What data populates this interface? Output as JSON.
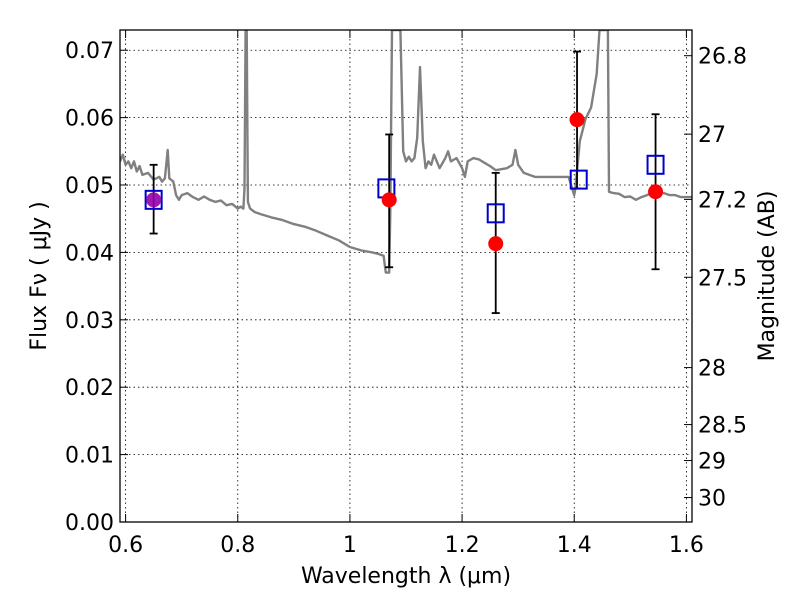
{
  "chart_data": {
    "type": "scatter",
    "xlabel": "Wavelength  λ (μm)",
    "ylabel_left": "Flux  Fν  ( μJy )",
    "ylabel_right": "Magnitude (AB)",
    "xlim": [
      0.59,
      1.61
    ],
    "ylim": [
      0.0,
      0.073
    ],
    "grid": true,
    "x_ticks": [
      {
        "value": 0.6,
        "label": "0.6"
      },
      {
        "value": 0.8,
        "label": "0.8"
      },
      {
        "value": 1.0,
        "label": "1"
      },
      {
        "value": 1.2,
        "label": "1.2"
      },
      {
        "value": 1.4,
        "label": "1.4"
      },
      {
        "value": 1.6,
        "label": "1.6"
      }
    ],
    "y_ticks": [
      {
        "value": 0.0,
        "label": "0.00"
      },
      {
        "value": 0.01,
        "label": "0.01"
      },
      {
        "value": 0.02,
        "label": "0.02"
      },
      {
        "value": 0.03,
        "label": "0.03"
      },
      {
        "value": 0.04,
        "label": "0.04"
      },
      {
        "value": 0.05,
        "label": "0.05"
      },
      {
        "value": 0.06,
        "label": "0.06"
      },
      {
        "value": 0.07,
        "label": "0.07"
      }
    ],
    "right_ticks": [
      {
        "mag": 26.8,
        "label": "26.8"
      },
      {
        "mag": 27.0,
        "label": "27"
      },
      {
        "mag": 27.2,
        "label": "27.2"
      },
      {
        "mag": 27.5,
        "label": "27.5"
      },
      {
        "mag": 28.0,
        "label": "28"
      },
      {
        "mag": 28.5,
        "label": "28.5"
      },
      {
        "mag": 29.0,
        "label": "29"
      },
      {
        "mag": 30.0,
        "label": "30"
      }
    ],
    "series": [
      {
        "kind": "line",
        "color": "#808080",
        "points": [
          [
            0.59,
            0.0535
          ],
          [
            0.595,
            0.0545
          ],
          [
            0.6,
            0.053
          ],
          [
            0.605,
            0.0535
          ],
          [
            0.61,
            0.0525
          ],
          [
            0.615,
            0.0535
          ],
          [
            0.62,
            0.052
          ],
          [
            0.625,
            0.0528
          ],
          [
            0.63,
            0.0515
          ],
          [
            0.64,
            0.0518
          ],
          [
            0.65,
            0.0508
          ],
          [
            0.66,
            0.0512
          ],
          [
            0.665,
            0.0505
          ],
          [
            0.67,
            0.051
          ],
          [
            0.675,
            0.0552
          ],
          [
            0.678,
            0.051
          ],
          [
            0.685,
            0.0505
          ],
          [
            0.69,
            0.0485
          ],
          [
            0.695,
            0.0478
          ],
          [
            0.7,
            0.0485
          ],
          [
            0.71,
            0.0488
          ],
          [
            0.72,
            0.0482
          ],
          [
            0.73,
            0.0478
          ],
          [
            0.74,
            0.0483
          ],
          [
            0.75,
            0.0478
          ],
          [
            0.76,
            0.0475
          ],
          [
            0.77,
            0.0477
          ],
          [
            0.78,
            0.047
          ],
          [
            0.79,
            0.0472
          ],
          [
            0.8,
            0.0465
          ],
          [
            0.805,
            0.0468
          ],
          [
            0.81,
            0.0465
          ],
          [
            0.812,
            0.0495
          ],
          [
            0.814,
            0.073
          ],
          [
            0.816,
            0.073
          ],
          [
            0.818,
            0.0475
          ],
          [
            0.822,
            0.0465
          ],
          [
            0.83,
            0.046
          ],
          [
            0.84,
            0.0457
          ],
          [
            0.86,
            0.0452
          ],
          [
            0.88,
            0.0448
          ],
          [
            0.9,
            0.0442
          ],
          [
            0.92,
            0.0438
          ],
          [
            0.94,
            0.0432
          ],
          [
            0.96,
            0.0425
          ],
          [
            0.98,
            0.0418
          ],
          [
            1.0,
            0.0408
          ],
          [
            1.02,
            0.0403
          ],
          [
            1.04,
            0.04
          ],
          [
            1.05,
            0.0398
          ],
          [
            1.06,
            0.0395
          ],
          [
            1.064,
            0.037
          ],
          [
            1.068,
            0.037
          ],
          [
            1.07,
            0.037
          ],
          [
            1.072,
            0.046
          ],
          [
            1.075,
            0.073
          ],
          [
            1.09,
            0.073
          ],
          [
            1.095,
            0.055
          ],
          [
            1.1,
            0.0535
          ],
          [
            1.105,
            0.0542
          ],
          [
            1.11,
            0.0535
          ],
          [
            1.115,
            0.054
          ],
          [
            1.12,
            0.057
          ],
          [
            1.125,
            0.0675
          ],
          [
            1.13,
            0.0565
          ],
          [
            1.135,
            0.0525
          ],
          [
            1.14,
            0.0535
          ],
          [
            1.145,
            0.053
          ],
          [
            1.15,
            0.0545
          ],
          [
            1.16,
            0.0525
          ],
          [
            1.17,
            0.054
          ],
          [
            1.175,
            0.055
          ],
          [
            1.18,
            0.0535
          ],
          [
            1.19,
            0.054
          ],
          [
            1.2,
            0.0525
          ],
          [
            1.205,
            0.0512
          ],
          [
            1.21,
            0.0535
          ],
          [
            1.22,
            0.054
          ],
          [
            1.23,
            0.0538
          ],
          [
            1.24,
            0.0533
          ],
          [
            1.25,
            0.0528
          ],
          [
            1.26,
            0.0522
          ],
          [
            1.28,
            0.0525
          ],
          [
            1.29,
            0.053
          ],
          [
            1.295,
            0.0552
          ],
          [
            1.3,
            0.053
          ],
          [
            1.31,
            0.0518
          ],
          [
            1.32,
            0.0515
          ],
          [
            1.33,
            0.0512
          ],
          [
            1.35,
            0.0512
          ],
          [
            1.37,
            0.0512
          ],
          [
            1.39,
            0.0512
          ],
          [
            1.4,
            0.0485
          ],
          [
            1.402,
            0.0495
          ],
          [
            1.41,
            0.0565
          ],
          [
            1.42,
            0.0598
          ],
          [
            1.43,
            0.0615
          ],
          [
            1.44,
            0.0665
          ],
          [
            1.445,
            0.073
          ],
          [
            1.46,
            0.073
          ],
          [
            1.462,
            0.049
          ],
          [
            1.47,
            0.0488
          ],
          [
            1.48,
            0.0487
          ],
          [
            1.49,
            0.0482
          ],
          [
            1.5,
            0.0483
          ],
          [
            1.51,
            0.0478
          ],
          [
            1.52,
            0.0482
          ],
          [
            1.53,
            0.0485
          ],
          [
            1.54,
            0.049
          ],
          [
            1.55,
            0.0487
          ],
          [
            1.56,
            0.0488
          ],
          [
            1.57,
            0.0485
          ],
          [
            1.58,
            0.0485
          ],
          [
            1.59,
            0.0482
          ],
          [
            1.6,
            0.0482
          ],
          [
            1.61,
            0.0482
          ]
        ]
      },
      {
        "kind": "errorbar",
        "color": "#000000",
        "points": [
          {
            "x": 0.65,
            "low": 0.0428,
            "high": 0.053
          },
          {
            "x": 1.07,
            "low": 0.0378,
            "high": 0.0575
          },
          {
            "x": 1.26,
            "low": 0.031,
            "high": 0.0518
          },
          {
            "x": 1.405,
            "low": 0.0495,
            "high": 0.0698
          },
          {
            "x": 1.545,
            "low": 0.0375,
            "high": 0.0605
          }
        ]
      },
      {
        "kind": "markers-square-open",
        "color": "#0000cc",
        "points": [
          {
            "x": 0.65,
            "y": 0.0478
          },
          {
            "x": 1.065,
            "y": 0.0495
          },
          {
            "x": 1.26,
            "y": 0.0458
          },
          {
            "x": 1.408,
            "y": 0.0508
          },
          {
            "x": 1.545,
            "y": 0.053
          }
        ]
      },
      {
        "kind": "markers-circle",
        "color": "#ff0000",
        "points": [
          {
            "x": 0.65,
            "y": 0.0478,
            "color": "#9400a8"
          },
          {
            "x": 1.07,
            "y": 0.0478
          },
          {
            "x": 1.26,
            "y": 0.0413
          },
          {
            "x": 1.405,
            "y": 0.0597
          },
          {
            "x": 1.545,
            "y": 0.049
          }
        ]
      }
    ]
  }
}
